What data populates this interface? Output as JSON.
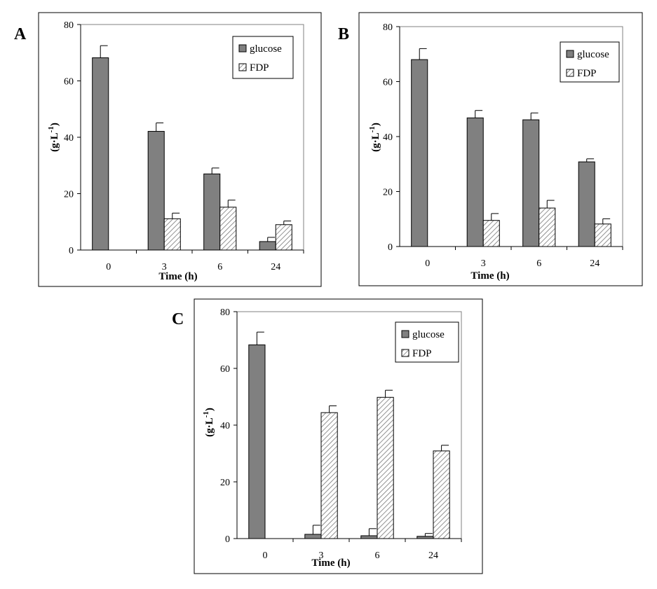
{
  "chart_data": [
    {
      "panel_label": "A",
      "type": "bar",
      "categories": [
        "0",
        "3",
        "6",
        "24"
      ],
      "series": [
        {
          "name": "glucose",
          "values": [
            68.2,
            42.1,
            27.0,
            3.0
          ],
          "errors": [
            4.3,
            3.0,
            2.1,
            1.5
          ],
          "color": "#808080",
          "pattern": "solid"
        },
        {
          "name": "FDP",
          "values": [
            0,
            11.1,
            15.2,
            9.0
          ],
          "errors": [
            0,
            2.0,
            2.5,
            1.3
          ],
          "color": "#ffffff",
          "pattern": "hatch"
        }
      ],
      "ylabel": "(g·L-1)",
      "xlabel": "Time (h)",
      "ylim": [
        0,
        80
      ],
      "yticks": [
        "0",
        "20",
        "40",
        "60",
        "80"
      ],
      "legend_position": "top-right"
    },
    {
      "panel_label": "B",
      "type": "bar",
      "categories": [
        "0",
        "3",
        "6",
        "24"
      ],
      "series": [
        {
          "name": "glucose",
          "values": [
            68.0,
            46.8,
            46.1,
            30.8
          ],
          "errors": [
            4.0,
            2.7,
            2.5,
            1.1
          ],
          "color": "#808080",
          "pattern": "solid"
        },
        {
          "name": "FDP",
          "values": [
            0,
            9.5,
            14.0,
            8.2
          ],
          "errors": [
            0,
            2.5,
            2.8,
            1.9
          ],
          "color": "#ffffff",
          "pattern": "hatch"
        }
      ],
      "ylabel": "(g·L-1)",
      "xlabel": "Time (h)",
      "ylim": [
        0,
        80
      ],
      "yticks": [
        "0",
        "20",
        "40",
        "60",
        "80"
      ],
      "legend_position": "top-right"
    },
    {
      "panel_label": "C",
      "type": "bar",
      "categories": [
        "0",
        "3",
        "6",
        "24"
      ],
      "series": [
        {
          "name": "glucose",
          "values": [
            68.3,
            1.5,
            1.0,
            0.8
          ],
          "errors": [
            4.5,
            3.2,
            2.5,
            1.0
          ],
          "color": "#808080",
          "pattern": "solid"
        },
        {
          "name": "FDP",
          "values": [
            0,
            44.4,
            49.8,
            30.9
          ],
          "errors": [
            0,
            2.4,
            2.5,
            2.0
          ],
          "color": "#ffffff",
          "pattern": "hatch"
        }
      ],
      "ylabel": "(g·L-1)",
      "xlabel": "Time (h)",
      "ylim": [
        0,
        80
      ],
      "yticks": [
        "0",
        "20",
        "40",
        "60",
        "80"
      ],
      "legend_position": "top-right"
    }
  ]
}
